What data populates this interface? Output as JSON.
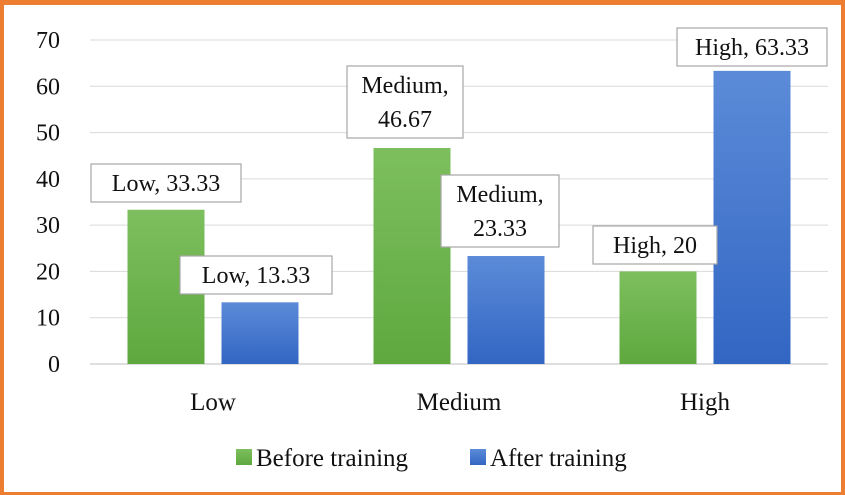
{
  "colors": {
    "border": "#ED7D31",
    "before_top": "#7DBF5E",
    "before_bottom": "#5EA83E",
    "after_top": "#5B8BD8",
    "after_bottom": "#3266C3",
    "grid": "#D9D9D9"
  },
  "chart_data": {
    "type": "bar",
    "title": "",
    "xlabel": "",
    "ylabel": "",
    "categories": [
      "Low",
      "Medium",
      "High"
    ],
    "series": [
      {
        "name": "Before training",
        "values": [
          33.33,
          46.67,
          20
        ]
      },
      {
        "name": "After training",
        "values": [
          13.33,
          23.33,
          63.33
        ]
      }
    ],
    "data_labels": [
      [
        "Low, 33.33",
        "Medium, 46.67",
        "High, 20"
      ],
      [
        "Low, 13.33",
        "Medium, 23.33",
        "High, 63.33"
      ]
    ],
    "y_ticks": [
      "0",
      "10",
      "20",
      "30",
      "40",
      "50",
      "60",
      "70"
    ],
    "ylim": [
      0,
      70
    ],
    "grid": true,
    "legend_position": "bottom"
  }
}
